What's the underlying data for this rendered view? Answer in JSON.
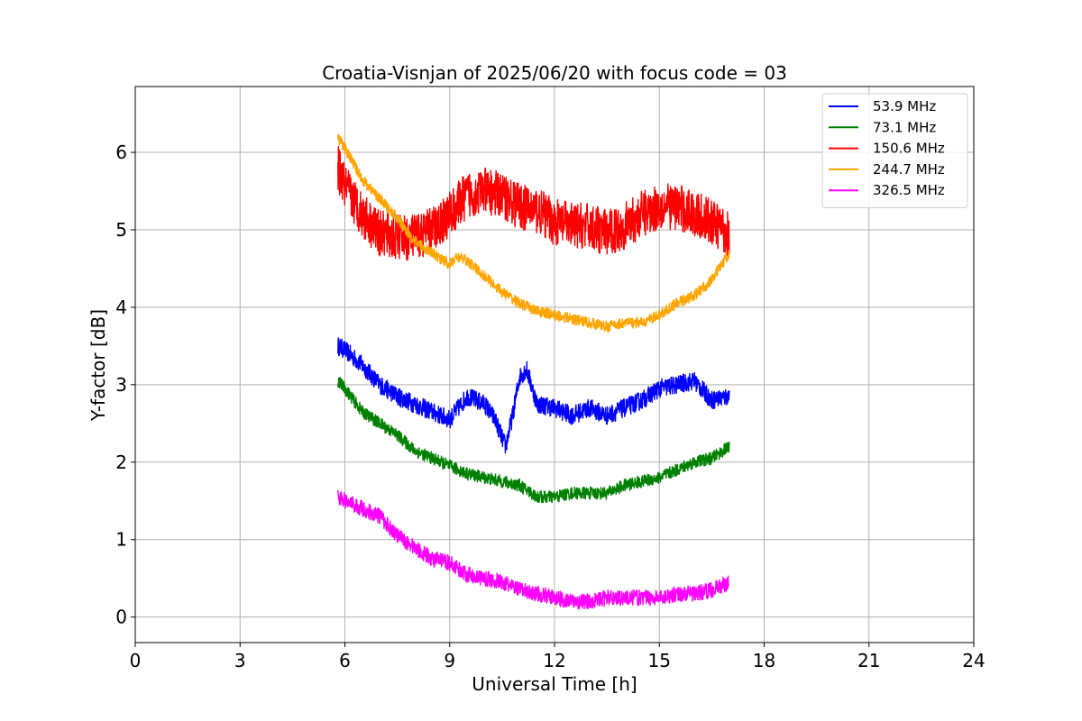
{
  "chart_data": {
    "type": "line",
    "title": "Croatia-Visnjan of 2025/06/20 with focus code = 03",
    "xlabel": "Universal Time [h]",
    "ylabel": "Y-factor [dB]",
    "xlim": [
      0,
      24
    ],
    "ylim": [
      -0.33,
      6.85
    ],
    "x_ticks": [
      0,
      3,
      6,
      9,
      12,
      15,
      18,
      21,
      24
    ],
    "y_ticks": [
      0,
      1,
      2,
      3,
      4,
      5,
      6
    ],
    "grid": true,
    "legend_position": "top-right",
    "series": [
      {
        "name": " 53.9 MHz",
        "color": "#0000ff",
        "noise": 0.12,
        "x": [
          5.8,
          6.0,
          6.5,
          7.0,
          7.5,
          8.0,
          8.5,
          9.0,
          9.5,
          10.0,
          10.3,
          10.6,
          10.8,
          11.0,
          11.2,
          11.5,
          12.0,
          12.5,
          13.0,
          13.5,
          14.0,
          14.5,
          15.0,
          15.5,
          16.0,
          16.5,
          17.0
        ],
        "y": [
          3.5,
          3.45,
          3.25,
          3.0,
          2.85,
          2.75,
          2.65,
          2.55,
          2.85,
          2.75,
          2.55,
          2.2,
          2.6,
          3.1,
          3.2,
          2.75,
          2.7,
          2.6,
          2.7,
          2.6,
          2.7,
          2.8,
          2.95,
          3.0,
          3.05,
          2.8,
          2.85
        ]
      },
      {
        "name": " 73.1 MHz",
        "color": "#008000",
        "noise": 0.08,
        "x": [
          5.8,
          6.0,
          6.5,
          7.0,
          7.5,
          8.0,
          8.5,
          9.0,
          9.5,
          10.0,
          10.5,
          11.0,
          11.5,
          12.0,
          12.5,
          13.0,
          13.5,
          14.0,
          14.5,
          15.0,
          15.5,
          16.0,
          16.5,
          17.0
        ],
        "y": [
          3.05,
          2.95,
          2.65,
          2.5,
          2.35,
          2.15,
          2.05,
          1.95,
          1.85,
          1.8,
          1.75,
          1.7,
          1.55,
          1.55,
          1.6,
          1.6,
          1.6,
          1.7,
          1.75,
          1.8,
          1.9,
          2.0,
          2.05,
          2.2
        ]
      },
      {
        "name": " 150.6 MHz",
        "color": "#ff0000",
        "noise": 0.3,
        "x": [
          5.8,
          6.0,
          6.5,
          7.0,
          7.5,
          8.0,
          8.5,
          9.0,
          9.5,
          10.0,
          10.5,
          11.0,
          11.5,
          12.0,
          12.5,
          13.0,
          13.5,
          14.0,
          14.5,
          15.0,
          15.5,
          16.0,
          16.5,
          17.0
        ],
        "y": [
          5.8,
          5.55,
          5.2,
          4.95,
          4.9,
          4.9,
          5.0,
          5.2,
          5.45,
          5.5,
          5.45,
          5.3,
          5.25,
          5.1,
          5.05,
          5.05,
          4.95,
          5.05,
          5.2,
          5.3,
          5.3,
          5.2,
          5.1,
          4.95
        ]
      },
      {
        "name": " 244.7 MHz",
        "color": "#ffa500",
        "noise": 0.07,
        "x": [
          5.8,
          6.0,
          6.5,
          7.0,
          7.5,
          8.0,
          8.5,
          9.0,
          9.2,
          9.5,
          10.0,
          10.5,
          11.0,
          11.5,
          12.0,
          12.5,
          13.0,
          13.5,
          14.0,
          14.5,
          15.0,
          15.5,
          16.0,
          16.5,
          17.0
        ],
        "y": [
          6.2,
          6.05,
          5.65,
          5.4,
          5.15,
          4.85,
          4.7,
          4.55,
          4.65,
          4.6,
          4.4,
          4.2,
          4.05,
          3.95,
          3.9,
          3.85,
          3.8,
          3.75,
          3.8,
          3.8,
          3.9,
          4.05,
          4.15,
          4.35,
          4.7
        ]
      },
      {
        "name": " 326.5 MHz",
        "color": "#ff00ff",
        "noise": 0.1,
        "x": [
          5.8,
          6.0,
          6.5,
          7.0,
          7.5,
          8.0,
          8.5,
          9.0,
          9.5,
          10.0,
          10.5,
          11.0,
          11.5,
          12.0,
          12.5,
          13.0,
          13.5,
          14.0,
          14.5,
          15.0,
          15.5,
          16.0,
          16.5,
          17.0
        ],
        "y": [
          1.55,
          1.5,
          1.4,
          1.3,
          1.05,
          0.9,
          0.75,
          0.7,
          0.55,
          0.5,
          0.45,
          0.35,
          0.3,
          0.25,
          0.2,
          0.2,
          0.25,
          0.25,
          0.25,
          0.25,
          0.3,
          0.3,
          0.35,
          0.45
        ]
      }
    ]
  }
}
